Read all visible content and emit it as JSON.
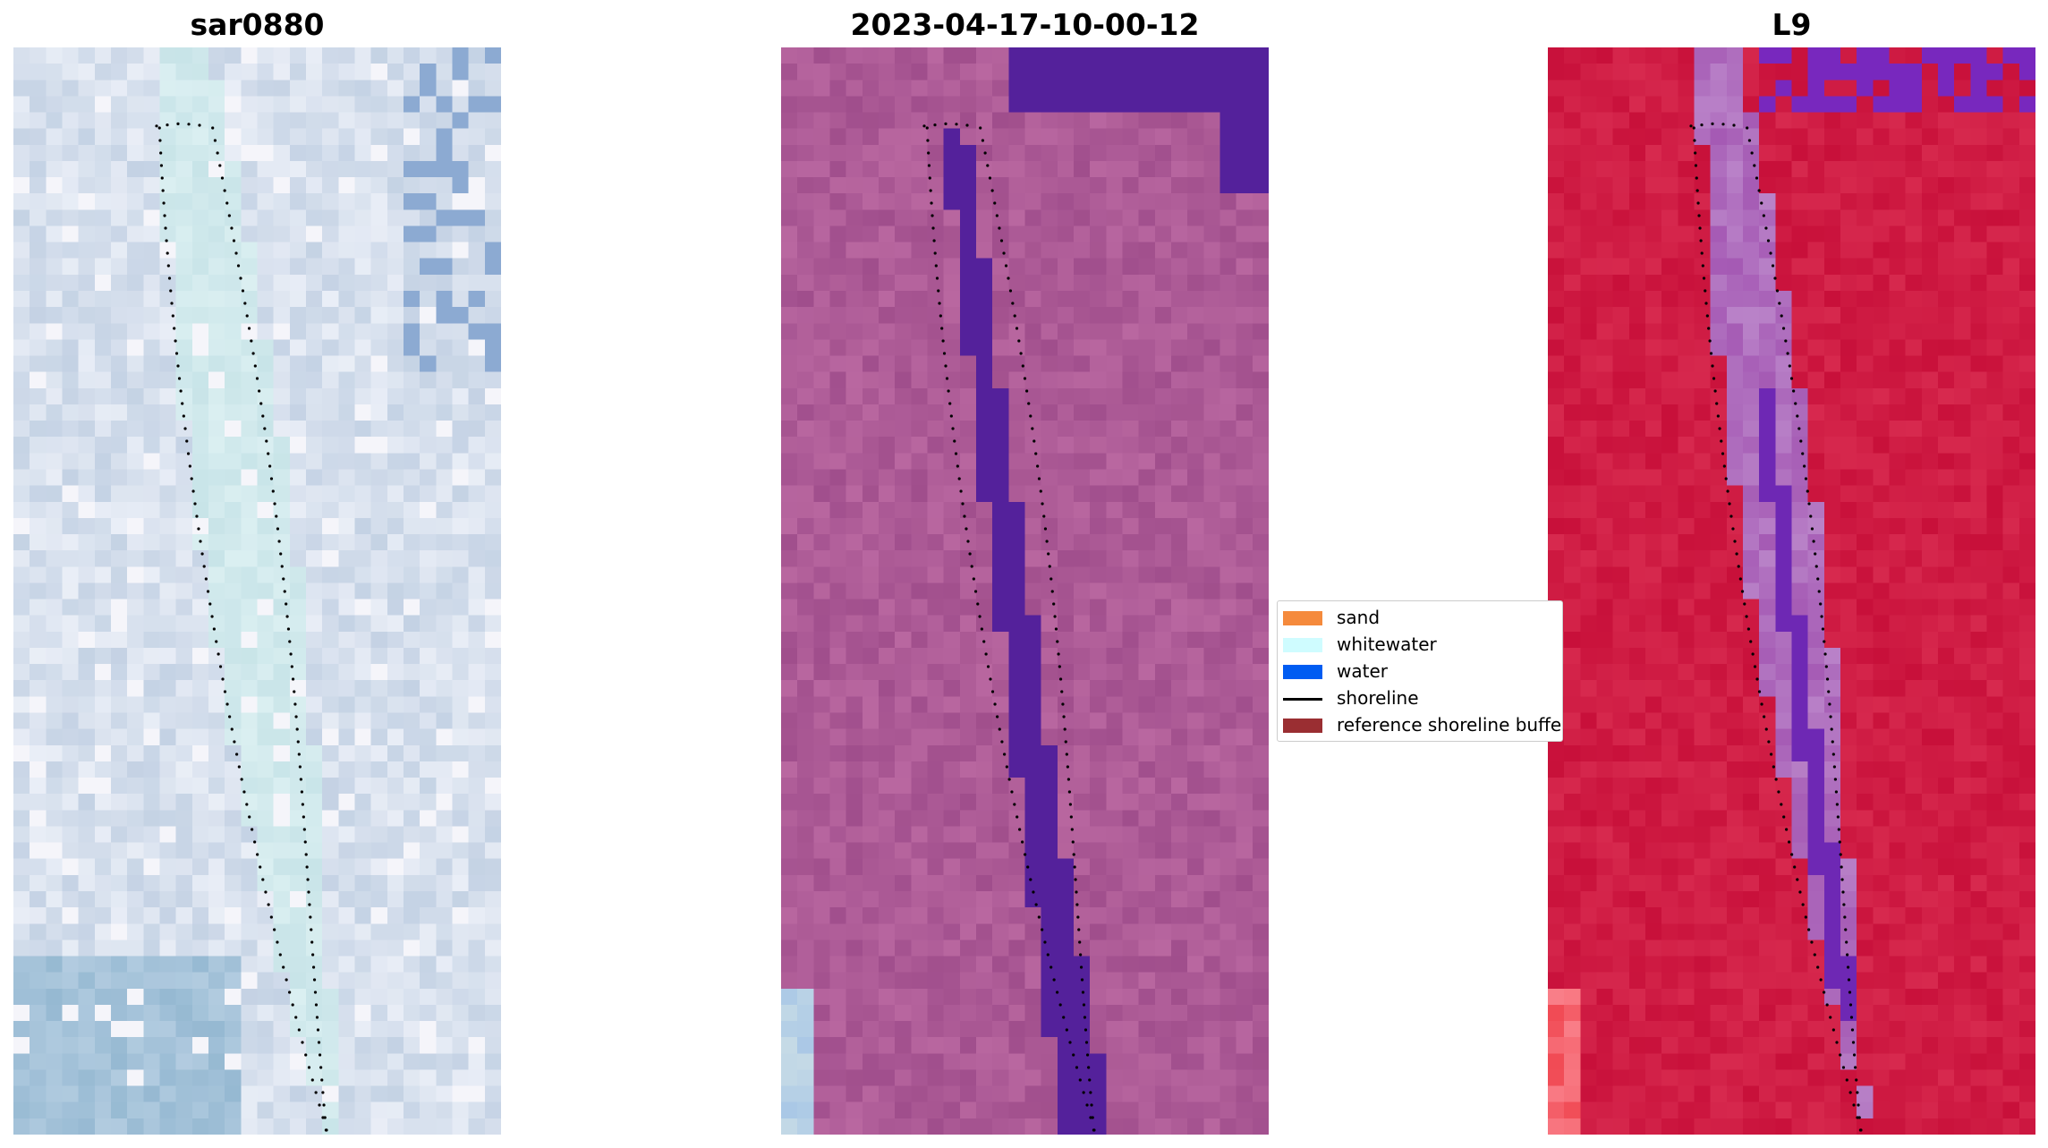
{
  "figure": {
    "panels": [
      {
        "title": "sar0880",
        "style": "rgb"
      },
      {
        "title": "2023-04-17-10-00-12",
        "style": "classified"
      },
      {
        "title": "L9",
        "style": "index"
      }
    ],
    "legend": {
      "items": [
        {
          "label": "sand",
          "color": "#f58a3c",
          "kind": "patch"
        },
        {
          "label": "whitewater",
          "color": "#cffcff",
          "kind": "patch"
        },
        {
          "label": "water",
          "color": "#005cf2",
          "kind": "patch"
        },
        {
          "label": "shoreline",
          "color": "#000000",
          "kind": "line"
        },
        {
          "label": "reference shoreline buffer",
          "color": "#9a2e32",
          "kind": "patch"
        }
      ]
    },
    "colors": {
      "water_class": "#54219b",
      "classified_background": "#a0508c",
      "index_background": "#c8103a",
      "shoreline_dots": "#000000"
    }
  }
}
